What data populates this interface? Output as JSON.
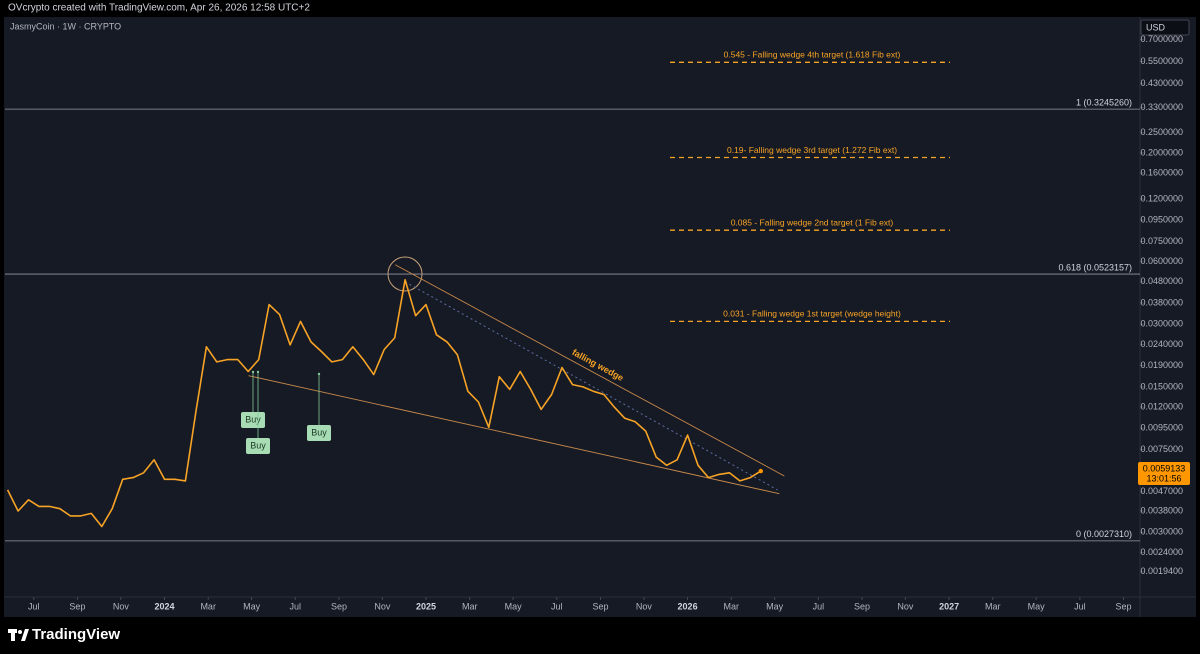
{
  "header": {
    "attribution": "OVcrypto created with TradingView.com, Apr 26, 2026 12:58 UTC+2",
    "symbol": "JasmyCoin · 1W · CRYPTO",
    "currency": "USD",
    "brand": "TradingView"
  },
  "chart_data": {
    "type": "line",
    "color": "#f7a325",
    "log_scale": true,
    "grid": false,
    "x": [
      2023.4,
      2023.44,
      2023.48,
      2023.52,
      2023.56,
      2023.6,
      2023.64,
      2023.68,
      2023.72,
      2023.76,
      2023.8,
      2023.84,
      2023.88,
      2023.92,
      2023.96,
      2024.0,
      2024.04,
      2024.08,
      2024.12,
      2024.16,
      2024.2,
      2024.24,
      2024.28,
      2024.32,
      2024.36,
      2024.4,
      2024.44,
      2024.48,
      2024.52,
      2024.56,
      2024.6,
      2024.64,
      2024.68,
      2024.72,
      2024.76,
      2024.8,
      2024.84,
      2024.88,
      2024.92,
      2024.96,
      2025.0,
      2025.04,
      2025.08,
      2025.12,
      2025.16,
      2025.2,
      2025.24,
      2025.28,
      2025.32,
      2025.36,
      2025.4,
      2025.44,
      2025.48,
      2025.52,
      2025.56,
      2025.6,
      2025.64,
      2025.68,
      2025.72,
      2025.76,
      2025.8,
      2025.84,
      2025.88,
      2025.92,
      2025.96,
      2026.0,
      2026.04,
      2026.08,
      2026.12,
      2026.16,
      2026.2,
      2026.24,
      2026.28
    ],
    "values": [
      0.0048,
      0.0038,
      0.0043,
      0.004,
      0.004,
      0.0039,
      0.0036,
      0.0036,
      0.0037,
      0.0032,
      0.0039,
      0.0054,
      0.0055,
      0.0058,
      0.0067,
      0.0054,
      0.0054,
      0.0053,
      0.0114,
      0.0234,
      0.0198,
      0.0203,
      0.0203,
      0.0178,
      0.0203,
      0.0373,
      0.0334,
      0.0239,
      0.031,
      0.0247,
      0.0222,
      0.0198,
      0.0203,
      0.0234,
      0.0203,
      0.0172,
      0.0227,
      0.0258,
      0.0491,
      0.033,
      0.0373,
      0.0267,
      0.0247,
      0.0214,
      0.0143,
      0.0127,
      0.0096,
      0.0168,
      0.0146,
      0.0178,
      0.0146,
      0.0117,
      0.0138,
      0.0186,
      0.0154,
      0.015,
      0.0143,
      0.0138,
      0.012,
      0.0106,
      0.0102,
      0.0092,
      0.0069,
      0.0063,
      0.0067,
      0.0088,
      0.0063,
      0.0055,
      0.0057,
      0.0058,
      0.0053,
      0.0055,
      0.0059133
    ],
    "last_price": {
      "value": 0.0059133,
      "label": "0.0059133"
    },
    "countdown": "13:01:56",
    "xlim": [
      2023.39,
      2027.73
    ],
    "ylim": [
      0.0015,
      0.89
    ],
    "xticks": [
      {
        "value": 2023.5,
        "label": "Jul"
      },
      {
        "value": 2023.667,
        "label": "Sep"
      },
      {
        "value": 2023.833,
        "label": "Nov"
      },
      2024,
      {
        "value": 2024.167,
        "label": "Mar"
      },
      {
        "value": 2024.333,
        "label": "May"
      },
      {
        "value": 2024.5,
        "label": "Jul"
      },
      {
        "value": 2024.667,
        "label": "Sep"
      },
      {
        "value": 2024.833,
        "label": "Nov"
      },
      2025,
      {
        "value": 2025.167,
        "label": "Mar"
      },
      {
        "value": 2025.333,
        "label": "May"
      },
      {
        "value": 2025.5,
        "label": "Jul"
      },
      {
        "value": 2025.667,
        "label": "Sep"
      },
      {
        "value": 2025.833,
        "label": "Nov"
      },
      2026,
      {
        "value": 2026.167,
        "label": "Mar"
      },
      {
        "value": 2026.333,
        "label": "May"
      },
      {
        "value": 2026.5,
        "label": "Jul"
      },
      {
        "value": 2026.667,
        "label": "Sep"
      },
      {
        "value": 2026.833,
        "label": "Nov"
      },
      2027,
      {
        "value": 2027.167,
        "label": "Mar"
      },
      {
        "value": 2027.333,
        "label": "May"
      },
      {
        "value": 2027.5,
        "label": "Jul"
      },
      {
        "value": 2027.667,
        "label": "Sep"
      }
    ],
    "yticks": [
      {
        "value": 0.7,
        "label": "0.7000000"
      },
      {
        "value": 0.55,
        "label": "0.5500000"
      },
      {
        "value": 0.43,
        "label": "0.4300000"
      },
      {
        "value": 0.33,
        "label": "0.3300000"
      },
      {
        "value": 0.25,
        "label": "0.2500000"
      },
      {
        "value": 0.2,
        "label": "0.2000000"
      },
      {
        "value": 0.16,
        "label": "0.1600000"
      },
      {
        "value": 0.12,
        "label": "0.1200000"
      },
      {
        "value": 0.095,
        "label": "0.0950000"
      },
      {
        "value": 0.075,
        "label": "0.0750000"
      },
      {
        "value": 0.06,
        "label": "0.0600000"
      },
      {
        "value": 0.048,
        "label": "0.0480000"
      },
      {
        "value": 0.038,
        "label": "0.0380000"
      },
      {
        "value": 0.03,
        "label": "0.0300000"
      },
      {
        "value": 0.024,
        "label": "0.0240000"
      },
      {
        "value": 0.019,
        "label": "0.0190000"
      },
      {
        "value": 0.015,
        "label": "0.0150000"
      },
      {
        "value": 0.012,
        "label": "0.0120000"
      },
      {
        "value": 0.0095,
        "label": "0.0095000"
      },
      {
        "value": 0.0075,
        "label": "0.0075000"
      },
      {
        "value": 0.0047,
        "label": "0.0047000"
      },
      {
        "value": 0.0038,
        "label": "0.0038000"
      },
      {
        "value": 0.003,
        "label": "0.0030000"
      },
      {
        "value": 0.0024,
        "label": "0.0024000"
      },
      {
        "value": 0.00194,
        "label": "0.0019400"
      }
    ],
    "fib_levels": [
      {
        "value": 0.324526,
        "label": "1 (0.3245260)"
      },
      {
        "value": 0.0523157,
        "label": "0.618 (0.0523157)"
      },
      {
        "value": 0.002731,
        "label": "0 (0.0027310)"
      }
    ],
    "targets": [
      {
        "value": 0.545,
        "label": "0.545 - Falling wedge 4th target (1.618 Fib ext)"
      },
      {
        "value": 0.19,
        "label": "0.19- Falling wedge 3rd target (1.272 Fib ext)"
      },
      {
        "value": 0.085,
        "label": "0.085 - Falling wedge 2nd target (1 Fib ext)"
      },
      {
        "value": 0.031,
        "label": "0.031 - Falling wedge 1st target (wedge height)"
      }
    ],
    "wedge": {
      "label": "falling wedge",
      "upper": {
        "x": [
          2024.882,
          2026.37
        ],
        "y": [
          0.058,
          0.0056
        ]
      },
      "lower": {
        "x": [
          2024.321,
          2026.351
        ],
        "y": [
          0.017,
          0.0046
        ]
      },
      "mid": {
        "x": [
          2024.92,
          2026.344
        ],
        "y": [
          0.048,
          0.0048
        ]
      }
    },
    "signals": [
      "Buy",
      "Buy",
      "Buy"
    ]
  }
}
